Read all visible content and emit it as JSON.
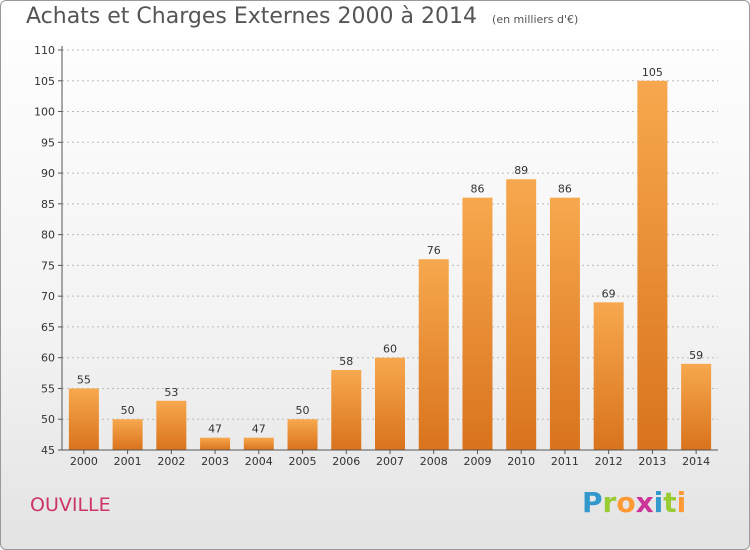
{
  "title": "Achats et Charges Externes 2000 à 2014",
  "subtitle": "(en milliers d'€)",
  "commune": "OUVILLE",
  "brand": {
    "text": "Proxiti",
    "letters": [
      {
        "ch": "P",
        "color": "#3399cc"
      },
      {
        "ch": "r",
        "color": "#99cc33"
      },
      {
        "ch": "o",
        "color": "#ff9933"
      },
      {
        "ch": "x",
        "color": "#cc3399"
      },
      {
        "ch": "i",
        "color": "#3399cc"
      },
      {
        "ch": "t",
        "color": "#99cc33"
      },
      {
        "ch": "i",
        "color": "#ff9933"
      }
    ]
  },
  "colors": {
    "bar_light": "#f7a84e",
    "bar_dark": "#d9731c",
    "grid": "#bbbbbb",
    "axis": "#555555",
    "text": "#333333",
    "commune": "#cc3366"
  },
  "chart_data": {
    "type": "bar",
    "title": "Achats et Charges Externes 2000 à 2014",
    "xlabel": "",
    "ylabel": "",
    "categories": [
      "2000",
      "2001",
      "2002",
      "2003",
      "2004",
      "2005",
      "2006",
      "2007",
      "2008",
      "2009",
      "2010",
      "2011",
      "2012",
      "2013",
      "2014"
    ],
    "values": [
      55,
      50,
      53,
      47,
      47,
      50,
      58,
      60,
      76,
      86,
      89,
      86,
      69,
      105,
      59
    ],
    "ylim": [
      45,
      110
    ],
    "yticks": [
      45,
      50,
      55,
      60,
      65,
      70,
      75,
      80,
      85,
      90,
      95,
      100,
      105,
      110
    ],
    "grid": true
  }
}
